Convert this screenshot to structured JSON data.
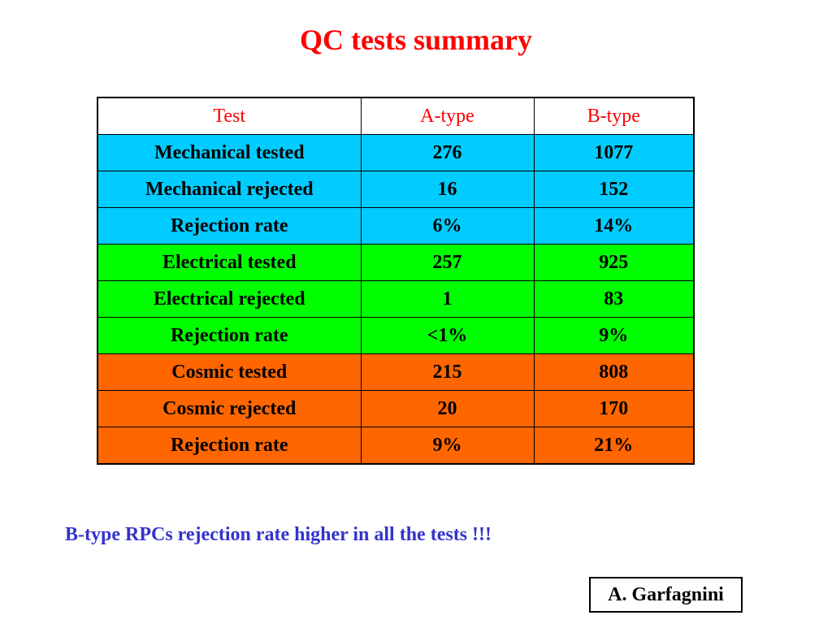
{
  "slide": {
    "title": "QC tests summary",
    "conclusion": "B-type RPCs rejection rate higher in all the tests !!!",
    "author": "A. Garfagnini"
  },
  "table": {
    "headers": [
      "Test",
      "A-type",
      "B-type"
    ],
    "header_text_color": "#ff0000",
    "groups": [
      {
        "color": "#00ccff",
        "rows": [
          [
            "Mechanical tested",
            "276",
            "1077"
          ],
          [
            "Mechanical rejected",
            "16",
            "152"
          ],
          [
            "Rejection rate",
            "6%",
            "14%"
          ]
        ]
      },
      {
        "color": "#00ff00",
        "rows": [
          [
            "Electrical tested",
            "257",
            "925"
          ],
          [
            "Electrical rejected",
            "1",
            "83"
          ],
          [
            "Rejection rate",
            "<1%",
            "9%"
          ]
        ]
      },
      {
        "color": "#ff6600",
        "rows": [
          [
            "Cosmic tested",
            "215",
            "808"
          ],
          [
            "Cosmic rejected",
            "20",
            "170"
          ],
          [
            "Rejection rate",
            "9%",
            "21%"
          ]
        ]
      }
    ]
  }
}
